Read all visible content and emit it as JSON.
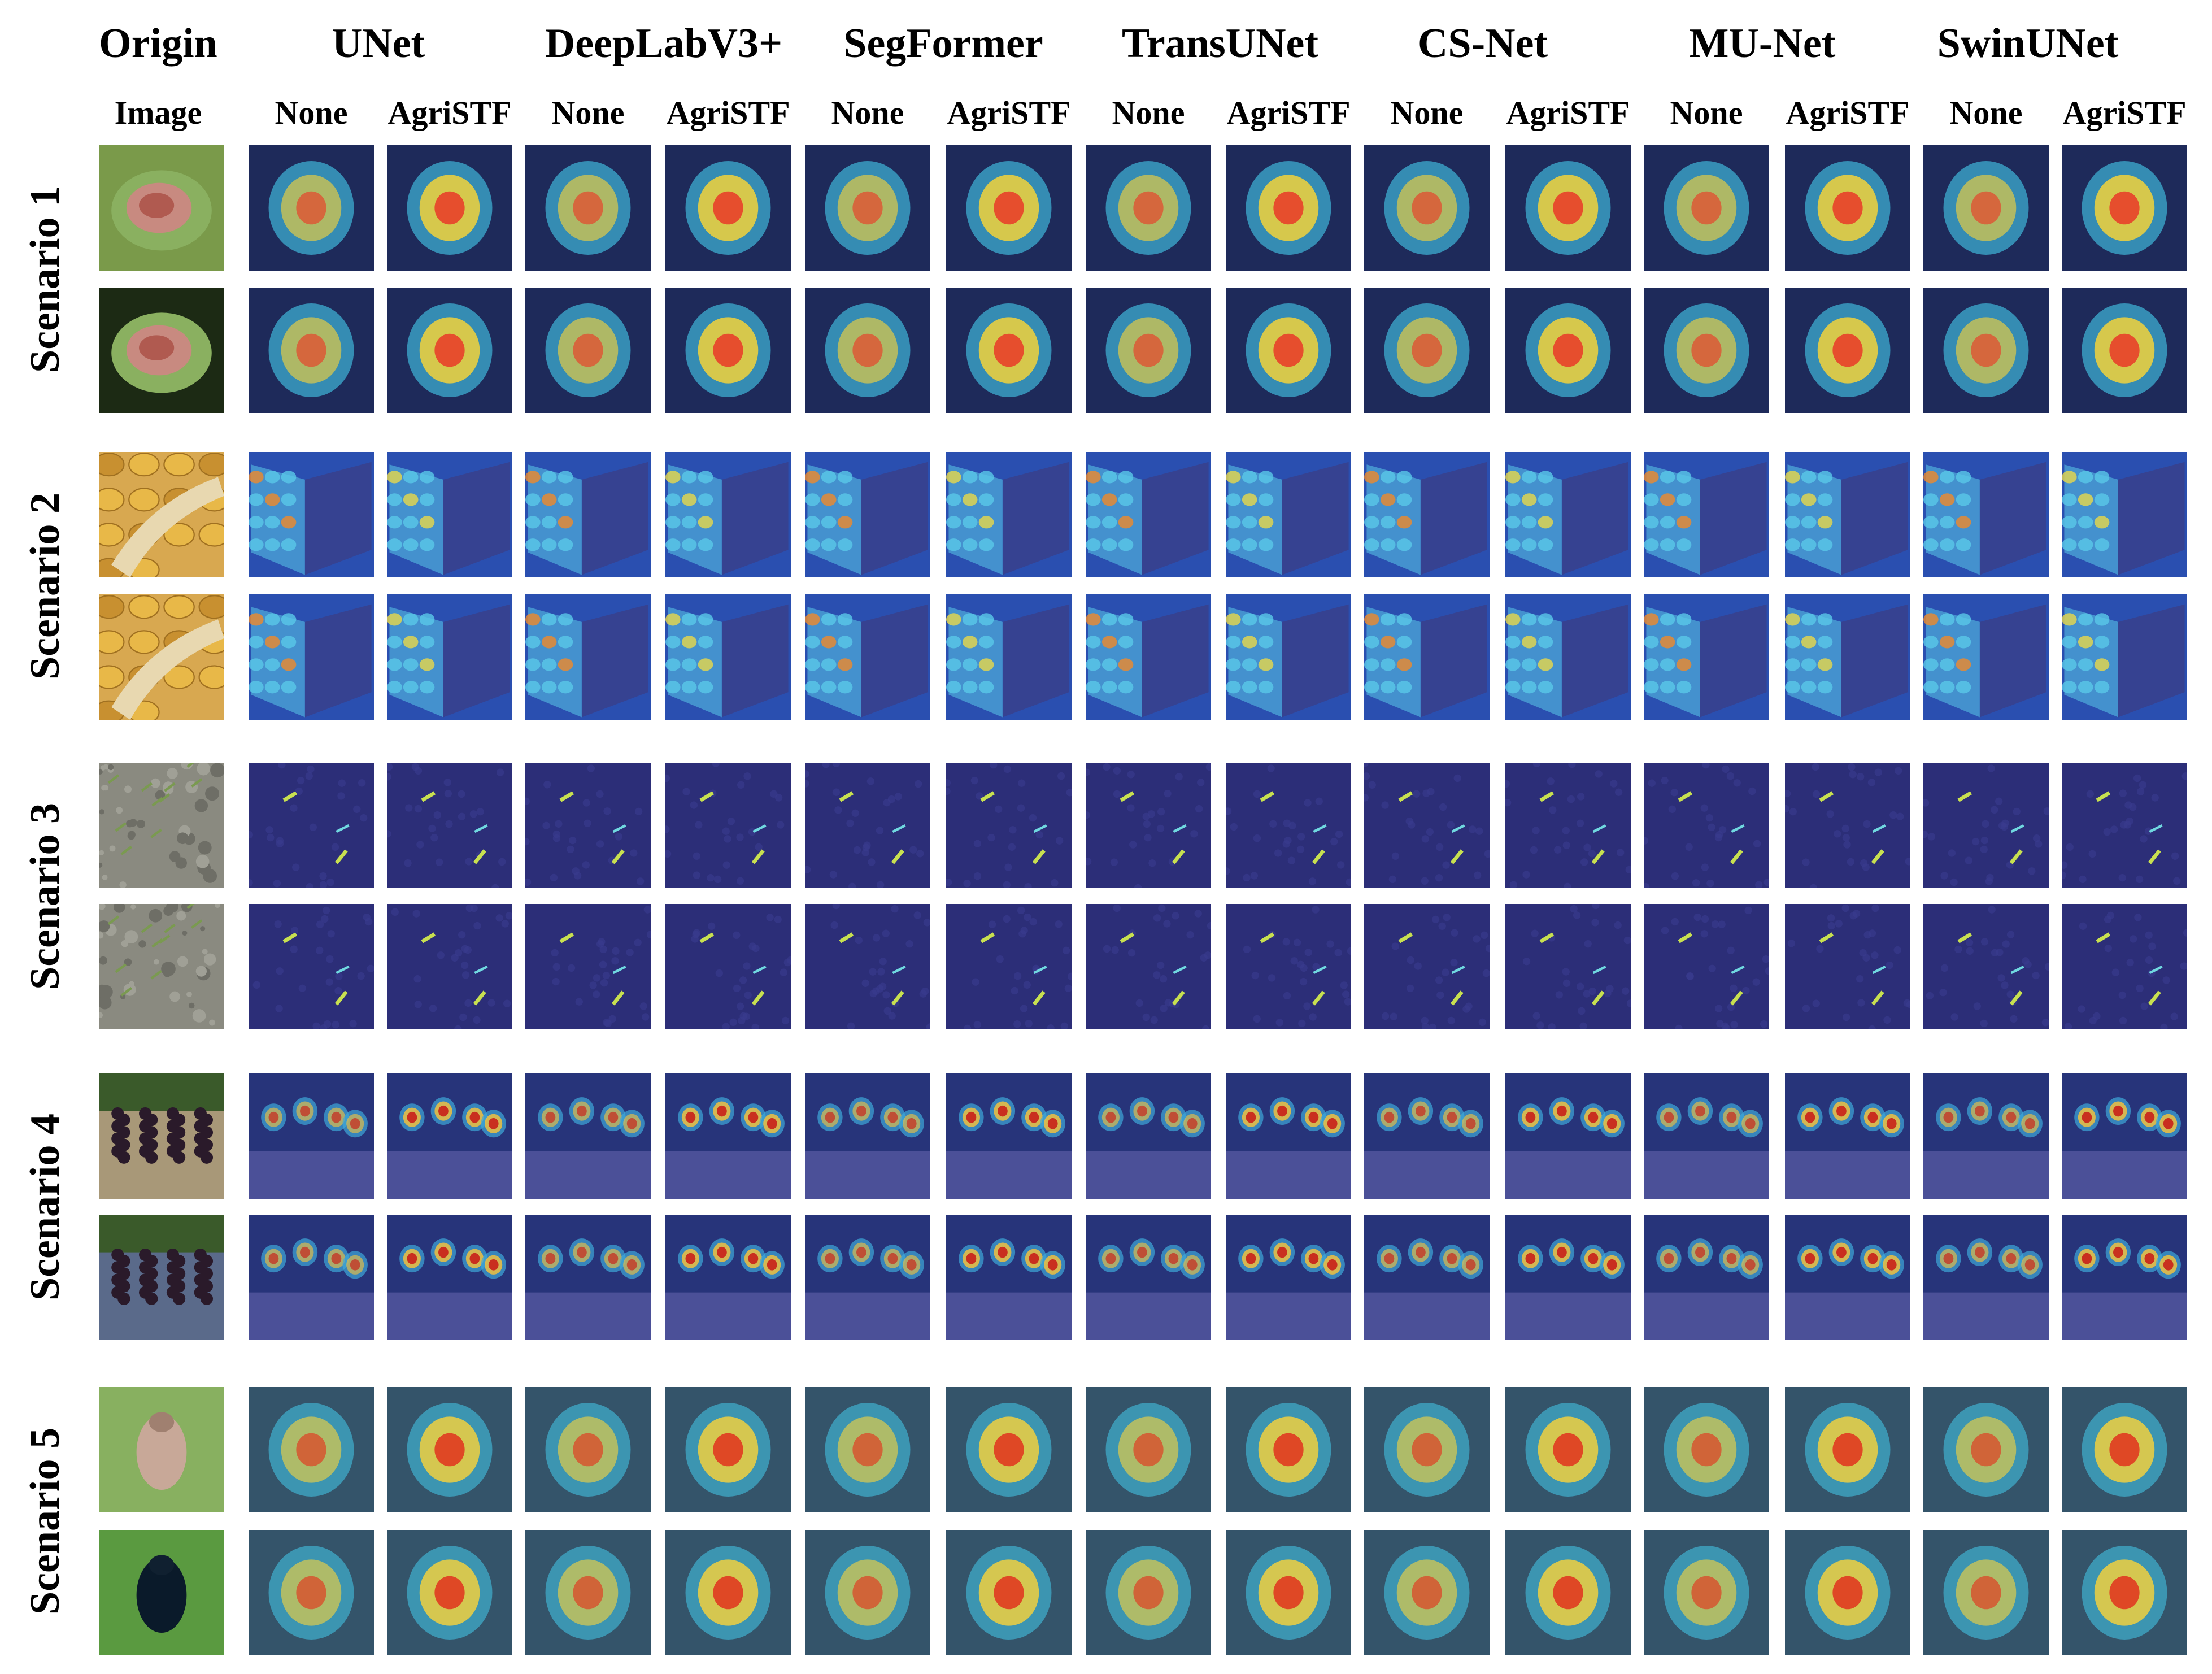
{
  "header": {
    "origin_line1": "Origin",
    "origin_line2": "Image",
    "models": [
      "UNet",
      "DeepLabV3+",
      "SegFormer",
      "TransUNet",
      "CS-Net",
      "MU-Net",
      "SwinUNet"
    ],
    "variants": [
      "None",
      "AgriSTF"
    ]
  },
  "scenarios": [
    {
      "label": "Scenario 1",
      "kind": "leaf",
      "palette": {
        "bg": "#1e2a5a",
        "hot": "#e8402a",
        "warm": "#f2d23a",
        "cool": "#3fb6d8"
      }
    },
    {
      "label": "Scenario 2",
      "kind": "corn",
      "palette": {
        "bg": "#2a4fb0",
        "hot": "#f08a2a",
        "warm": "#e8d84a",
        "cool": "#5ac8e8"
      }
    },
    {
      "label": "Scenario 3",
      "kind": "weed",
      "palette": {
        "bg": "#2c2e78",
        "hot": "#e0a040",
        "warm": "#c8e050",
        "cool": "#70d8e0"
      }
    },
    {
      "label": "Scenario 4",
      "kind": "grape",
      "palette": {
        "bg": "#27347a",
        "hot": "#c8201a",
        "warm": "#f0c040",
        "cool": "#3fa8d8"
      }
    },
    {
      "label": "Scenario 5",
      "kind": "bug",
      "palette": {
        "bg": "#34546a",
        "hot": "#e03a20",
        "warm": "#f0d040",
        "cool": "#40b0d0"
      }
    }
  ],
  "colors": {
    "background": "#ffffff",
    "text": "#000000"
  }
}
